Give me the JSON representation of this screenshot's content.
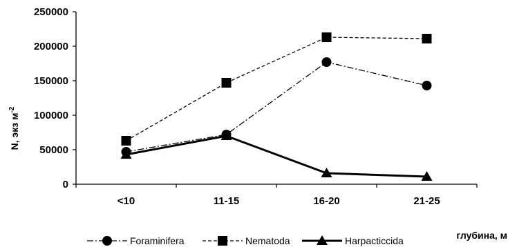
{
  "chart_data": {
    "type": "line",
    "categories": [
      "<10",
      "11-15",
      "16-20",
      "21-25"
    ],
    "series": [
      {
        "name": "Foraminifera",
        "values": [
          47000,
          72000,
          177000,
          143000
        ],
        "marker": "circle",
        "line_style": "dash-dot",
        "line_width": 1.3
      },
      {
        "name": "Nematoda",
        "values": [
          63000,
          147000,
          213000,
          211000
        ],
        "marker": "square",
        "line_style": "dashed",
        "line_width": 1.3
      },
      {
        "name": "Harpacticcida",
        "values": [
          43000,
          70000,
          16000,
          11000
        ],
        "marker": "triangle",
        "line_style": "solid",
        "line_width": 3
      }
    ],
    "ylim": [
      0,
      250000
    ],
    "yticks": [
      0,
      50000,
      100000,
      150000,
      200000,
      250000
    ],
    "ylabel": "N, экз м",
    "ylabel_sup": "-2",
    "xlabel": "глубина, м",
    "legend_position": "bottom",
    "grid": false
  },
  "colors": {
    "ink": "#000000",
    "background": "#ffffff"
  }
}
